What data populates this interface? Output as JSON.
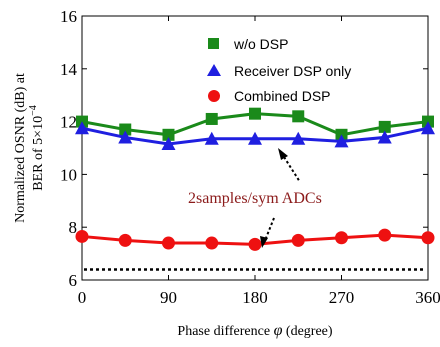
{
  "chart_data": {
    "type": "line",
    "title": "",
    "xlabel_prefix": "Phase difference ",
    "xlabel_symbol": "φ",
    "xlabel_suffix": " (degree)",
    "ylabel_line1": "Normalized OSNR (dB) at",
    "ylabel_line2_prefix": "BER of 5×10",
    "ylabel_line2_exp": "−4",
    "xlim": [
      0,
      360
    ],
    "ylim": [
      6,
      16
    ],
    "xticks": [
      0,
      90,
      180,
      270,
      360
    ],
    "yticks": [
      6,
      8,
      10,
      12,
      14,
      16
    ],
    "x": [
      0,
      45,
      90,
      135,
      180,
      225,
      270,
      315,
      360
    ],
    "series": [
      {
        "name": "w/o DSP",
        "color": "#1a8a1a",
        "marker": "square",
        "values": [
          12.0,
          11.7,
          11.5,
          12.1,
          12.3,
          12.2,
          11.5,
          11.8,
          12.0
        ]
      },
      {
        "name": "Receiver DSP only",
        "color": "#1f1fe0",
        "marker": "triangle",
        "values": [
          11.75,
          11.4,
          11.15,
          11.35,
          11.35,
          11.35,
          11.25,
          11.4,
          11.75
        ]
      },
      {
        "name": "Combined DSP",
        "color": "#ee1111",
        "marker": "circle",
        "values": [
          7.65,
          7.5,
          7.4,
          7.4,
          7.35,
          7.5,
          7.6,
          7.7,
          7.6
        ]
      }
    ],
    "reference_line": {
      "y": 6.4,
      "style": "dotted",
      "color": "#000000"
    },
    "annotation": {
      "text": "2samples/sym ADCs",
      "color": "#8b1a1a"
    },
    "legend_position": "top-right",
    "grid": false
  }
}
